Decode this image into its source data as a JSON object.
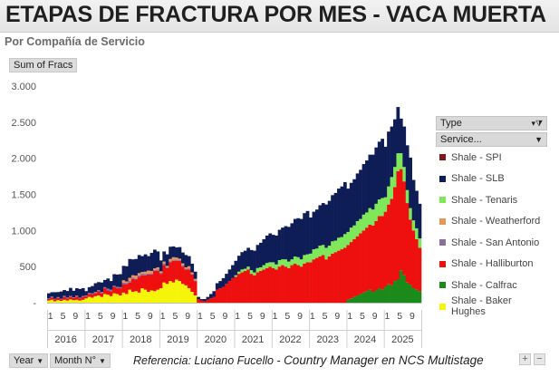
{
  "header": {
    "title": "ETAPAS DE FRACTURA POR MES -  VACA MUERTA",
    "subtitle": "Por Compañía de Servicio"
  },
  "pivot": {
    "values_field": "Sum of Fracs",
    "type_filter": "Type",
    "service_field": "Service...",
    "row_field_year": "Year",
    "row_field_month": "Month N°"
  },
  "footer": {
    "reference_prefix": "Referencia:  Luciano Fucello - ",
    "reference_role": "Country Manager en NCS Multistage",
    "zoom_in": "+",
    "zoom_out": "−"
  },
  "chart_data": {
    "type": "bar",
    "stacked": true,
    "ylim": [
      0,
      3000
    ],
    "y_ticks": [
      "-",
      "500",
      "1.000",
      "1.500",
      "2.000",
      "2.500",
      "3.000"
    ],
    "month_tick_labels": [
      "1",
      "5",
      "9"
    ],
    "years": [
      "2016",
      "2017",
      "2018",
      "2019",
      "2020",
      "2021",
      "2022",
      "2023",
      "2024",
      "2025"
    ],
    "legend": [
      {
        "name": "Shale - SPI",
        "color": "#7b1c1c"
      },
      {
        "name": "Shale - SLB",
        "color": "#0f1d57"
      },
      {
        "name": "Shale - Tenaris",
        "color": "#7ee85a"
      },
      {
        "name": "Shale - Weatherford",
        "color": "#e8955a"
      },
      {
        "name": "Shale - San Antonio",
        "color": "#8c6e9e"
      },
      {
        "name": "Shale - Halliburton",
        "color": "#ee0f0f"
      },
      {
        "name": "Shale - Calfrac",
        "color": "#1a8a1a"
      },
      {
        "name": "Shale - Baker Hughes",
        "color": "#f5f50a"
      }
    ],
    "stack_order": [
      "Shale - Baker Hughes",
      "Shale - Calfrac",
      "Shale - Halliburton",
      "Shale - San Antonio",
      "Shale - Weatherford",
      "Shale - Tenaris",
      "Shale - SLB",
      "Shale - SPI"
    ],
    "series": [
      {
        "name": "Shale - Baker Hughes",
        "values": [
          30,
          40,
          20,
          35,
          25,
          40,
          30,
          45,
          35,
          40,
          30,
          40,
          60,
          80,
          70,
          90,
          100,
          80,
          120,
          110,
          90,
          130,
          120,
          100,
          140,
          120,
          180,
          150,
          160,
          140,
          200,
          180,
          150,
          170,
          160,
          180,
          200,
          280,
          260,
          300,
          280,
          320,
          300,
          260,
          240,
          200,
          150,
          100,
          0,
          0,
          0,
          0,
          0,
          0,
          0,
          0,
          0,
          0,
          0,
          0,
          0,
          0,
          0,
          0,
          0,
          0,
          0,
          0,
          0,
          0,
          0,
          0,
          0,
          0,
          0,
          0,
          0,
          0,
          0,
          0,
          0,
          0,
          0,
          0,
          0,
          0,
          0,
          0,
          0,
          0,
          0,
          0,
          0,
          0,
          0,
          0,
          0,
          0,
          0,
          0,
          0,
          0,
          0,
          0,
          0,
          0,
          0,
          0,
          0,
          0,
          0,
          0,
          0,
          0,
          0,
          0,
          0,
          0,
          0,
          0
        ]
      },
      {
        "name": "Shale - Calfrac",
        "values": [
          0,
          0,
          0,
          0,
          0,
          0,
          0,
          0,
          0,
          0,
          0,
          0,
          0,
          0,
          0,
          0,
          0,
          0,
          0,
          0,
          0,
          0,
          0,
          0,
          0,
          0,
          0,
          0,
          0,
          0,
          0,
          0,
          0,
          0,
          0,
          0,
          0,
          0,
          0,
          0,
          0,
          0,
          0,
          0,
          0,
          0,
          0,
          0,
          0,
          0,
          0,
          0,
          0,
          0,
          0,
          0,
          0,
          0,
          0,
          0,
          0,
          0,
          0,
          0,
          0,
          0,
          0,
          0,
          0,
          0,
          0,
          0,
          0,
          0,
          0,
          0,
          0,
          0,
          0,
          0,
          0,
          0,
          0,
          0,
          0,
          0,
          0,
          0,
          0,
          0,
          0,
          0,
          0,
          0,
          0,
          0,
          40,
          60,
          80,
          100,
          120,
          140,
          160,
          180,
          150,
          170,
          200,
          180,
          220,
          260,
          240,
          300,
          320,
          450,
          380,
          280,
          250,
          200,
          180,
          160
        ]
      },
      {
        "name": "Shale - Halliburton",
        "values": [
          20,
          30,
          25,
          30,
          20,
          40,
          30,
          35,
          30,
          45,
          30,
          40,
          30,
          40,
          50,
          40,
          60,
          50,
          80,
          60,
          70,
          90,
          80,
          100,
          120,
          140,
          100,
          180,
          160,
          220,
          180,
          200,
          240,
          220,
          280,
          260,
          200,
          240,
          220,
          260,
          300,
          260,
          280,
          240,
          220,
          260,
          240,
          200,
          50,
          30,
          20,
          40,
          60,
          80,
          180,
          200,
          220,
          260,
          300,
          340,
          360,
          400,
          420,
          440,
          460,
          400,
          380,
          420,
          440,
          460,
          480,
          500,
          480,
          460,
          500,
          520,
          500,
          480,
          520,
          540,
          520,
          500,
          540,
          560,
          560,
          600,
          620,
          640,
          660,
          600,
          640,
          680,
          700,
          720,
          740,
          760,
          760,
          780,
          800,
          820,
          840,
          860,
          880,
          900,
          920,
          960,
          1000,
          1020,
          1040,
          1100,
          1200,
          1300,
          1500,
          1400,
          1300,
          1100,
          900,
          800,
          700,
          600
        ]
      },
      {
        "name": "Shale - San Antonio",
        "values": [
          10,
          15,
          10,
          12,
          10,
          15,
          12,
          15,
          10,
          15,
          10,
          12,
          10,
          15,
          10,
          20,
          15,
          20,
          15,
          25,
          20,
          15,
          20,
          15,
          20,
          15,
          25,
          20,
          15,
          20,
          25,
          20,
          15,
          20,
          15,
          20,
          15,
          20,
          10,
          15,
          10,
          15,
          10,
          15,
          10,
          15,
          10,
          10,
          0,
          0,
          0,
          0,
          0,
          0,
          0,
          0,
          0,
          0,
          0,
          0,
          0,
          0,
          0,
          0,
          0,
          0,
          0,
          0,
          0,
          0,
          0,
          0,
          0,
          0,
          0,
          0,
          0,
          0,
          0,
          0,
          0,
          0,
          0,
          0,
          0,
          0,
          0,
          0,
          0,
          0,
          0,
          0,
          0,
          0,
          0,
          0,
          0,
          0,
          0,
          0,
          0,
          0,
          0,
          0,
          0,
          0,
          0,
          0,
          0,
          0,
          0,
          0,
          0,
          0,
          0,
          0,
          0,
          0,
          0,
          0
        ]
      },
      {
        "name": "Shale - Weatherford",
        "values": [
          0,
          0,
          0,
          0,
          0,
          0,
          0,
          0,
          0,
          0,
          0,
          0,
          0,
          0,
          0,
          0,
          0,
          0,
          0,
          0,
          0,
          0,
          0,
          0,
          30,
          20,
          40,
          30,
          40,
          30,
          20,
          30,
          40,
          30,
          20,
          30,
          20,
          30,
          20,
          30,
          40,
          30,
          20,
          30,
          20,
          30,
          20,
          20,
          0,
          0,
          0,
          0,
          0,
          0,
          0,
          0,
          0,
          0,
          0,
          0,
          0,
          0,
          0,
          0,
          0,
          0,
          0,
          0,
          0,
          0,
          0,
          0,
          0,
          0,
          0,
          0,
          0,
          0,
          0,
          0,
          0,
          0,
          0,
          0,
          0,
          0,
          0,
          0,
          0,
          0,
          0,
          0,
          0,
          0,
          0,
          0,
          0,
          0,
          0,
          0,
          0,
          0,
          0,
          0,
          0,
          0,
          0,
          0,
          0,
          0,
          0,
          0,
          0,
          0,
          0,
          0,
          0,
          0,
          0,
          0
        ]
      },
      {
        "name": "Shale - Tenaris",
        "values": [
          0,
          0,
          0,
          0,
          0,
          0,
          0,
          0,
          0,
          0,
          0,
          0,
          0,
          0,
          0,
          0,
          0,
          0,
          0,
          0,
          0,
          0,
          0,
          0,
          0,
          0,
          0,
          0,
          0,
          0,
          0,
          0,
          0,
          0,
          0,
          0,
          0,
          0,
          0,
          0,
          0,
          0,
          0,
          0,
          0,
          0,
          0,
          0,
          0,
          0,
          0,
          0,
          0,
          0,
          0,
          0,
          0,
          0,
          0,
          0,
          20,
          30,
          40,
          30,
          40,
          50,
          40,
          60,
          50,
          60,
          70,
          60,
          80,
          70,
          90,
          80,
          100,
          90,
          80,
          100,
          110,
          100,
          120,
          110,
          120,
          140,
          130,
          150,
          140,
          160,
          150,
          170,
          160,
          180,
          170,
          190,
          180,
          200,
          190,
          210,
          200,
          220,
          210,
          230,
          220,
          240,
          230,
          250,
          200,
          250,
          300,
          280,
          250,
          220,
          200,
          180,
          160,
          140,
          150,
          130
        ]
      },
      {
        "name": "Shale - SLB",
        "values": [
          70,
          60,
          90,
          70,
          100,
          80,
          90,
          110,
          90,
          100,
          120,
          110,
          60,
          80,
          100,
          120,
          110,
          130,
          100,
          140,
          120,
          160,
          170,
          180,
          200,
          210,
          260,
          220,
          230,
          250,
          220,
          240,
          200,
          250,
          260,
          220,
          150,
          140,
          160,
          170,
          150,
          140,
          160,
          150,
          170,
          140,
          120,
          100,
          30,
          20,
          30,
          40,
          60,
          80,
          90,
          100,
          120,
          140,
          160,
          180,
          200,
          220,
          240,
          250,
          260,
          280,
          300,
          320,
          340,
          360,
          380,
          400,
          380,
          400,
          420,
          440,
          460,
          480,
          500,
          520,
          540,
          560,
          580,
          600,
          500,
          520,
          540,
          560,
          580,
          600,
          620,
          640,
          660,
          680,
          700,
          720,
          600,
          620,
          640,
          660,
          680,
          700,
          720,
          740,
          760,
          780,
          800,
          820,
          700,
          760,
          700,
          660,
          640,
          480,
          560,
          620,
          700,
          560,
          520,
          480
        ]
      },
      {
        "name": "Shale - SPI",
        "values": [
          0,
          0,
          0,
          0,
          0,
          0,
          0,
          0,
          0,
          0,
          0,
          0,
          0,
          0,
          0,
          0,
          0,
          0,
          0,
          0,
          0,
          0,
          0,
          0,
          0,
          0,
          0,
          0,
          0,
          0,
          0,
          0,
          0,
          0,
          0,
          0,
          0,
          0,
          0,
          0,
          0,
          0,
          0,
          0,
          0,
          0,
          0,
          0,
          0,
          0,
          0,
          0,
          0,
          0,
          0,
          0,
          0,
          0,
          0,
          0,
          0,
          0,
          0,
          0,
          0,
          0,
          0,
          0,
          0,
          0,
          0,
          0,
          0,
          0,
          0,
          0,
          0,
          0,
          0,
          0,
          0,
          0,
          0,
          0,
          0,
          0,
          0,
          0,
          0,
          0,
          0,
          0,
          0,
          0,
          0,
          0,
          0,
          0,
          0,
          0,
          0,
          0,
          0,
          0,
          0,
          0,
          0,
          0,
          0,
          0,
          0,
          0,
          0,
          0,
          0,
          0,
          0,
          0,
          0,
          0
        ]
      }
    ]
  }
}
